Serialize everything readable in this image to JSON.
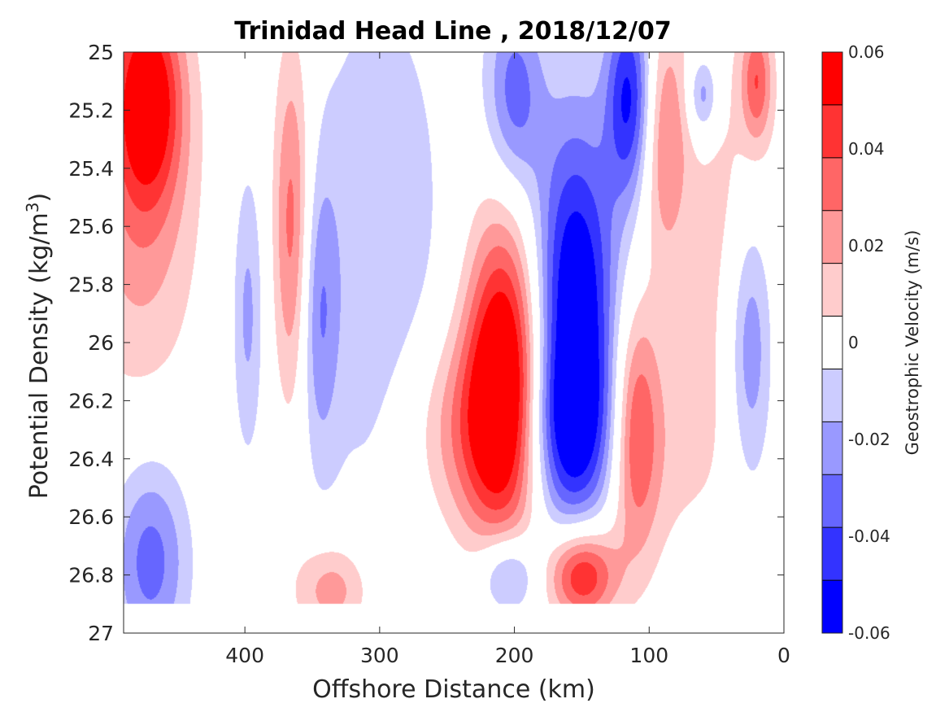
{
  "chart_data": {
    "type": "heatmap",
    "subtype": "filled-contour",
    "title": "Trinidad Head Line , 2018/12/07",
    "xlabel": "Offshore Distance (km)",
    "ylabel_main": "Potential Density (kg/m",
    "ylabel_sup": "3",
    "ylabel_close": ")",
    "xlim": [
      490,
      0
    ],
    "x_reversed": true,
    "ylim": [
      25,
      27
    ],
    "y_reversed": true,
    "x_ticks": [
      400,
      300,
      200,
      100,
      0
    ],
    "x_tick_labels": [
      "400",
      "300",
      "200",
      "100",
      "0"
    ],
    "y_ticks": [
      25,
      25.2,
      25.4,
      25.6,
      25.8,
      26,
      26.2,
      26.4,
      26.6,
      26.8,
      27
    ],
    "y_tick_labels": [
      "25",
      "25.2",
      "25.4",
      "25.6",
      "25.8",
      "26",
      "26.2",
      "26.4",
      "26.6",
      "26.8",
      "27"
    ],
    "grid": false,
    "data_valid_sigma_range": [
      25,
      26.9
    ],
    "colorbar": {
      "label": "Geostrophic Velocity (m/s)",
      "position": "right",
      "min": -0.06,
      "max": 0.06,
      "ticks": [
        0.06,
        0.04,
        0.02,
        0,
        -0.02,
        -0.04,
        -0.06
      ],
      "tick_labels": [
        "0.06",
        "0.04",
        "0.02",
        "0",
        "-0.02",
        "-0.04",
        "-0.06"
      ],
      "level_edges": [
        -0.06,
        -0.05,
        -0.04,
        -0.03,
        -0.02,
        -0.01,
        0.01,
        0.02,
        0.03,
        0.04,
        0.05,
        0.06
      ],
      "level_colors": [
        "#0000ff",
        "#3333ff",
        "#6666ff",
        "#9999ff",
        "#ccccff",
        "#ffffff",
        "#ffcccc",
        "#ff9999",
        "#ff6666",
        "#ff3333",
        "#ff0000"
      ]
    },
    "features": [
      {
        "x": 472,
        "sigma": 25.15,
        "v": 0.055,
        "sx": 18,
        "ss": 0.25
      },
      {
        "x": 478,
        "sigma": 25.55,
        "v": 0.025,
        "sx": 30,
        "ss": 0.45
      },
      {
        "x": 365,
        "sigma": 25.6,
        "v": 0.038,
        "sx": 10,
        "ss": 0.45
      },
      {
        "x": 300,
        "sigma": 25.7,
        "v": -0.018,
        "sx": 40,
        "ss": 0.75
      },
      {
        "x": 398,
        "sigma": 25.9,
        "v": -0.022,
        "sx": 8,
        "ss": 0.35
      },
      {
        "x": 345,
        "sigma": 25.9,
        "v": -0.024,
        "sx": 10,
        "ss": 0.35
      },
      {
        "x": 208,
        "sigma": 26.1,
        "v": 0.065,
        "sx": 20,
        "ss": 0.4
      },
      {
        "x": 230,
        "sigma": 26.3,
        "v": 0.03,
        "sx": 35,
        "ss": 0.25
      },
      {
        "x": 155,
        "sigma": 25.95,
        "v": -0.07,
        "sx": 22,
        "ss": 0.5
      },
      {
        "x": 160,
        "sigma": 26.3,
        "v": -0.03,
        "sx": 28,
        "ss": 0.2
      },
      {
        "x": 115,
        "sigma": 25.15,
        "v": -0.05,
        "sx": 12,
        "ss": 0.25
      },
      {
        "x": 200,
        "sigma": 25.15,
        "v": -0.035,
        "sx": 15,
        "ss": 0.25
      },
      {
        "x": 88,
        "sigma": 25.3,
        "v": 0.03,
        "sx": 12,
        "ss": 0.3
      },
      {
        "x": 110,
        "sigma": 26.3,
        "v": 0.035,
        "sx": 12,
        "ss": 0.3
      },
      {
        "x": 105,
        "sigma": 26.35,
        "v": 0.015,
        "sx": 45,
        "ss": 0.3
      },
      {
        "x": 40,
        "sigma": 25.6,
        "v": 0.015,
        "sx": 25,
        "ss": 0.5
      },
      {
        "x": 25,
        "sigma": 26.0,
        "v": -0.035,
        "sx": 12,
        "ss": 0.35
      },
      {
        "x": 60,
        "sigma": 25.15,
        "v": -0.03,
        "sx": 8,
        "ss": 0.1
      },
      {
        "x": 20,
        "sigma": 25.1,
        "v": 0.035,
        "sx": 8,
        "ss": 0.15
      },
      {
        "x": 470,
        "sigma": 26.75,
        "v": -0.035,
        "sx": 20,
        "ss": 0.25
      },
      {
        "x": 335,
        "sigma": 26.85,
        "v": 0.028,
        "sx": 20,
        "ss": 0.12
      },
      {
        "x": 150,
        "sigma": 26.8,
        "v": 0.06,
        "sx": 18,
        "ss": 0.12
      },
      {
        "x": 205,
        "sigma": 26.8,
        "v": -0.035,
        "sx": 15,
        "ss": 0.1
      }
    ]
  }
}
